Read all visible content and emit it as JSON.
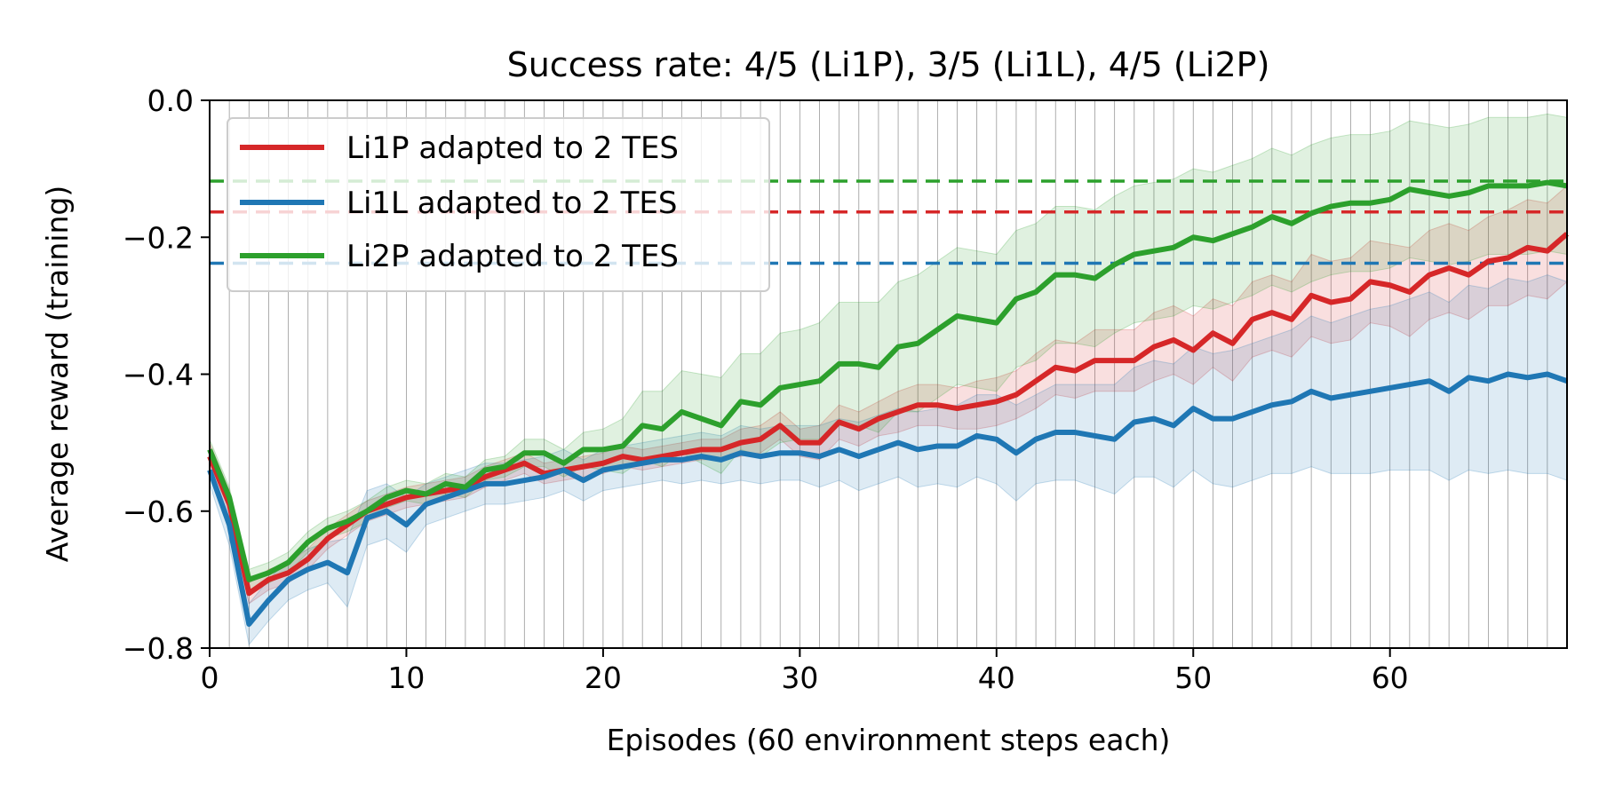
{
  "chart_data": {
    "type": "line",
    "title": "Success rate: 4/5 (Li1P), 3/5 (Li1L), 4/5 (Li2P)",
    "xlabel": "Episodes (60 environment steps each)",
    "ylabel": "Average reward (training)",
    "xlim": [
      0,
      69
    ],
    "ylim": [
      -0.8,
      0.0
    ],
    "x_ticks": [
      0,
      10,
      20,
      30,
      40,
      50,
      60
    ],
    "x_tick_labels": [
      "0",
      "10",
      "20",
      "30",
      "40",
      "50",
      "60"
    ],
    "y_ticks": [
      -0.8,
      -0.6,
      -0.4,
      -0.2,
      0.0
    ],
    "y_tick_labels": [
      "−0.8",
      "−0.6",
      "−0.4",
      "−0.2",
      "0.0"
    ],
    "vertical_gridlines_every": 1,
    "legend_position": "top-left",
    "series": [
      {
        "name": "Li1P adapted to 2 TES",
        "color": "#d62728",
        "baseline": -0.163,
        "x": [
          0,
          1,
          2,
          3,
          4,
          5,
          6,
          7,
          8,
          9,
          10,
          11,
          12,
          13,
          14,
          15,
          16,
          17,
          18,
          19,
          20,
          21,
          22,
          23,
          24,
          25,
          26,
          27,
          28,
          29,
          30,
          31,
          32,
          33,
          34,
          35,
          36,
          37,
          38,
          39,
          40,
          41,
          42,
          43,
          44,
          45,
          46,
          47,
          48,
          49,
          50,
          51,
          52,
          53,
          54,
          55,
          56,
          57,
          58,
          59,
          60,
          61,
          62,
          63,
          64,
          65,
          66,
          67,
          68,
          69
        ],
        "values": [
          -0.52,
          -0.59,
          -0.72,
          -0.7,
          -0.69,
          -0.67,
          -0.64,
          -0.62,
          -0.6,
          -0.59,
          -0.58,
          -0.575,
          -0.57,
          -0.565,
          -0.55,
          -0.54,
          -0.53,
          -0.545,
          -0.54,
          -0.535,
          -0.53,
          -0.52,
          -0.525,
          -0.52,
          -0.515,
          -0.51,
          -0.51,
          -0.5,
          -0.495,
          -0.475,
          -0.5,
          -0.5,
          -0.47,
          -0.48,
          -0.465,
          -0.455,
          -0.445,
          -0.445,
          -0.45,
          -0.445,
          -0.44,
          -0.43,
          -0.41,
          -0.39,
          -0.395,
          -0.38,
          -0.38,
          -0.38,
          -0.36,
          -0.35,
          -0.365,
          -0.34,
          -0.355,
          -0.32,
          -0.31,
          -0.32,
          -0.285,
          -0.295,
          -0.29,
          -0.265,
          -0.27,
          -0.28,
          -0.255,
          -0.245,
          -0.255,
          -0.235,
          -0.23,
          -0.215,
          -0.22,
          -0.195
        ],
        "band": [
          0.02,
          0.02,
          0.015,
          0.015,
          0.015,
          0.015,
          0.015,
          0.015,
          0.015,
          0.015,
          0.015,
          0.015,
          0.015,
          0.015,
          0.015,
          0.015,
          0.015,
          0.015,
          0.015,
          0.015,
          0.015,
          0.015,
          0.015,
          0.015,
          0.015,
          0.015,
          0.015,
          0.02,
          0.02,
          0.02,
          0.02,
          0.025,
          0.025,
          0.025,
          0.025,
          0.03,
          0.03,
          0.03,
          0.03,
          0.035,
          0.035,
          0.035,
          0.04,
          0.04,
          0.04,
          0.045,
          0.045,
          0.045,
          0.05,
          0.05,
          0.05,
          0.05,
          0.055,
          0.055,
          0.055,
          0.055,
          0.06,
          0.06,
          0.06,
          0.06,
          0.06,
          0.065,
          0.065,
          0.065,
          0.065,
          0.065,
          0.07,
          0.07,
          0.07,
          0.07
        ]
      },
      {
        "name": "Li1L adapted to 2 TES",
        "color": "#1f77b4",
        "baseline": -0.238,
        "x": [
          0,
          1,
          2,
          3,
          4,
          5,
          6,
          7,
          8,
          9,
          10,
          11,
          12,
          13,
          14,
          15,
          16,
          17,
          18,
          19,
          20,
          21,
          22,
          23,
          24,
          25,
          26,
          27,
          28,
          29,
          30,
          31,
          32,
          33,
          34,
          35,
          36,
          37,
          38,
          39,
          40,
          41,
          42,
          43,
          44,
          45,
          46,
          47,
          48,
          49,
          50,
          51,
          52,
          53,
          54,
          55,
          56,
          57,
          58,
          59,
          60,
          61,
          62,
          63,
          64,
          65,
          66,
          67,
          68,
          69
        ],
        "values": [
          -0.54,
          -0.62,
          -0.765,
          -0.73,
          -0.7,
          -0.685,
          -0.675,
          -0.69,
          -0.61,
          -0.6,
          -0.62,
          -0.59,
          -0.58,
          -0.57,
          -0.56,
          -0.56,
          -0.555,
          -0.55,
          -0.54,
          -0.555,
          -0.54,
          -0.535,
          -0.53,
          -0.525,
          -0.525,
          -0.52,
          -0.525,
          -0.515,
          -0.52,
          -0.515,
          -0.515,
          -0.52,
          -0.51,
          -0.52,
          -0.51,
          -0.5,
          -0.51,
          -0.505,
          -0.505,
          -0.49,
          -0.495,
          -0.515,
          -0.495,
          -0.485,
          -0.485,
          -0.49,
          -0.495,
          -0.47,
          -0.465,
          -0.475,
          -0.45,
          -0.465,
          -0.465,
          -0.455,
          -0.445,
          -0.44,
          -0.425,
          -0.435,
          -0.43,
          -0.425,
          -0.42,
          -0.415,
          -0.41,
          -0.425,
          -0.405,
          -0.41,
          -0.4,
          -0.405,
          -0.4,
          -0.41
        ],
        "band": [
          0.02,
          0.03,
          0.03,
          0.03,
          0.03,
          0.03,
          0.03,
          0.05,
          0.04,
          0.04,
          0.04,
          0.03,
          0.03,
          0.03,
          0.03,
          0.03,
          0.03,
          0.03,
          0.03,
          0.03,
          0.03,
          0.03,
          0.03,
          0.03,
          0.035,
          0.035,
          0.035,
          0.04,
          0.04,
          0.04,
          0.04,
          0.045,
          0.045,
          0.05,
          0.05,
          0.05,
          0.055,
          0.055,
          0.06,
          0.06,
          0.065,
          0.07,
          0.065,
          0.07,
          0.07,
          0.075,
          0.08,
          0.08,
          0.085,
          0.09,
          0.09,
          0.095,
          0.1,
          0.1,
          0.1,
          0.105,
          0.11,
          0.11,
          0.115,
          0.12,
          0.12,
          0.125,
          0.13,
          0.13,
          0.135,
          0.135,
          0.14,
          0.14,
          0.145,
          0.145
        ]
      },
      {
        "name": "Li2P adapted to 2 TES",
        "color": "#2ca02c",
        "baseline": -0.118,
        "x": [
          0,
          1,
          2,
          3,
          4,
          5,
          6,
          7,
          8,
          9,
          10,
          11,
          12,
          13,
          14,
          15,
          16,
          17,
          18,
          19,
          20,
          21,
          22,
          23,
          24,
          25,
          26,
          27,
          28,
          29,
          30,
          31,
          32,
          33,
          34,
          35,
          36,
          37,
          38,
          39,
          40,
          41,
          42,
          43,
          44,
          45,
          46,
          47,
          48,
          49,
          50,
          51,
          52,
          53,
          54,
          55,
          56,
          57,
          58,
          59,
          60,
          61,
          62,
          63,
          64,
          65,
          66,
          67,
          68,
          69
        ],
        "values": [
          -0.51,
          -0.58,
          -0.7,
          -0.69,
          -0.675,
          -0.645,
          -0.625,
          -0.615,
          -0.6,
          -0.58,
          -0.57,
          -0.575,
          -0.56,
          -0.565,
          -0.54,
          -0.535,
          -0.515,
          -0.515,
          -0.53,
          -0.51,
          -0.51,
          -0.505,
          -0.475,
          -0.48,
          -0.455,
          -0.465,
          -0.475,
          -0.44,
          -0.445,
          -0.42,
          -0.415,
          -0.41,
          -0.385,
          -0.385,
          -0.39,
          -0.36,
          -0.355,
          -0.335,
          -0.315,
          -0.32,
          -0.325,
          -0.29,
          -0.28,
          -0.255,
          -0.255,
          -0.26,
          -0.24,
          -0.225,
          -0.22,
          -0.215,
          -0.2,
          -0.205,
          -0.195,
          -0.185,
          -0.17,
          -0.18,
          -0.165,
          -0.155,
          -0.15,
          -0.15,
          -0.145,
          -0.13,
          -0.135,
          -0.14,
          -0.135,
          -0.125,
          -0.125,
          -0.125,
          -0.12,
          -0.125
        ],
        "band": [
          0.015,
          0.015,
          0.015,
          0.015,
          0.015,
          0.015,
          0.015,
          0.015,
          0.015,
          0.015,
          0.015,
          0.015,
          0.015,
          0.015,
          0.015,
          0.015,
          0.02,
          0.02,
          0.02,
          0.025,
          0.03,
          0.04,
          0.05,
          0.055,
          0.06,
          0.065,
          0.07,
          0.07,
          0.075,
          0.08,
          0.08,
          0.085,
          0.09,
          0.09,
          0.095,
          0.095,
          0.1,
          0.1,
          0.1,
          0.1,
          0.1,
          0.1,
          0.1,
          0.1,
          0.1,
          0.1,
          0.1,
          0.1,
          0.1,
          0.1,
          0.1,
          0.1,
          0.1,
          0.1,
          0.1,
          0.1,
          0.1,
          0.1,
          0.1,
          0.1,
          0.1,
          0.1,
          0.1,
          0.1,
          0.1,
          0.1,
          0.1,
          0.1,
          0.1,
          0.1
        ]
      }
    ]
  }
}
